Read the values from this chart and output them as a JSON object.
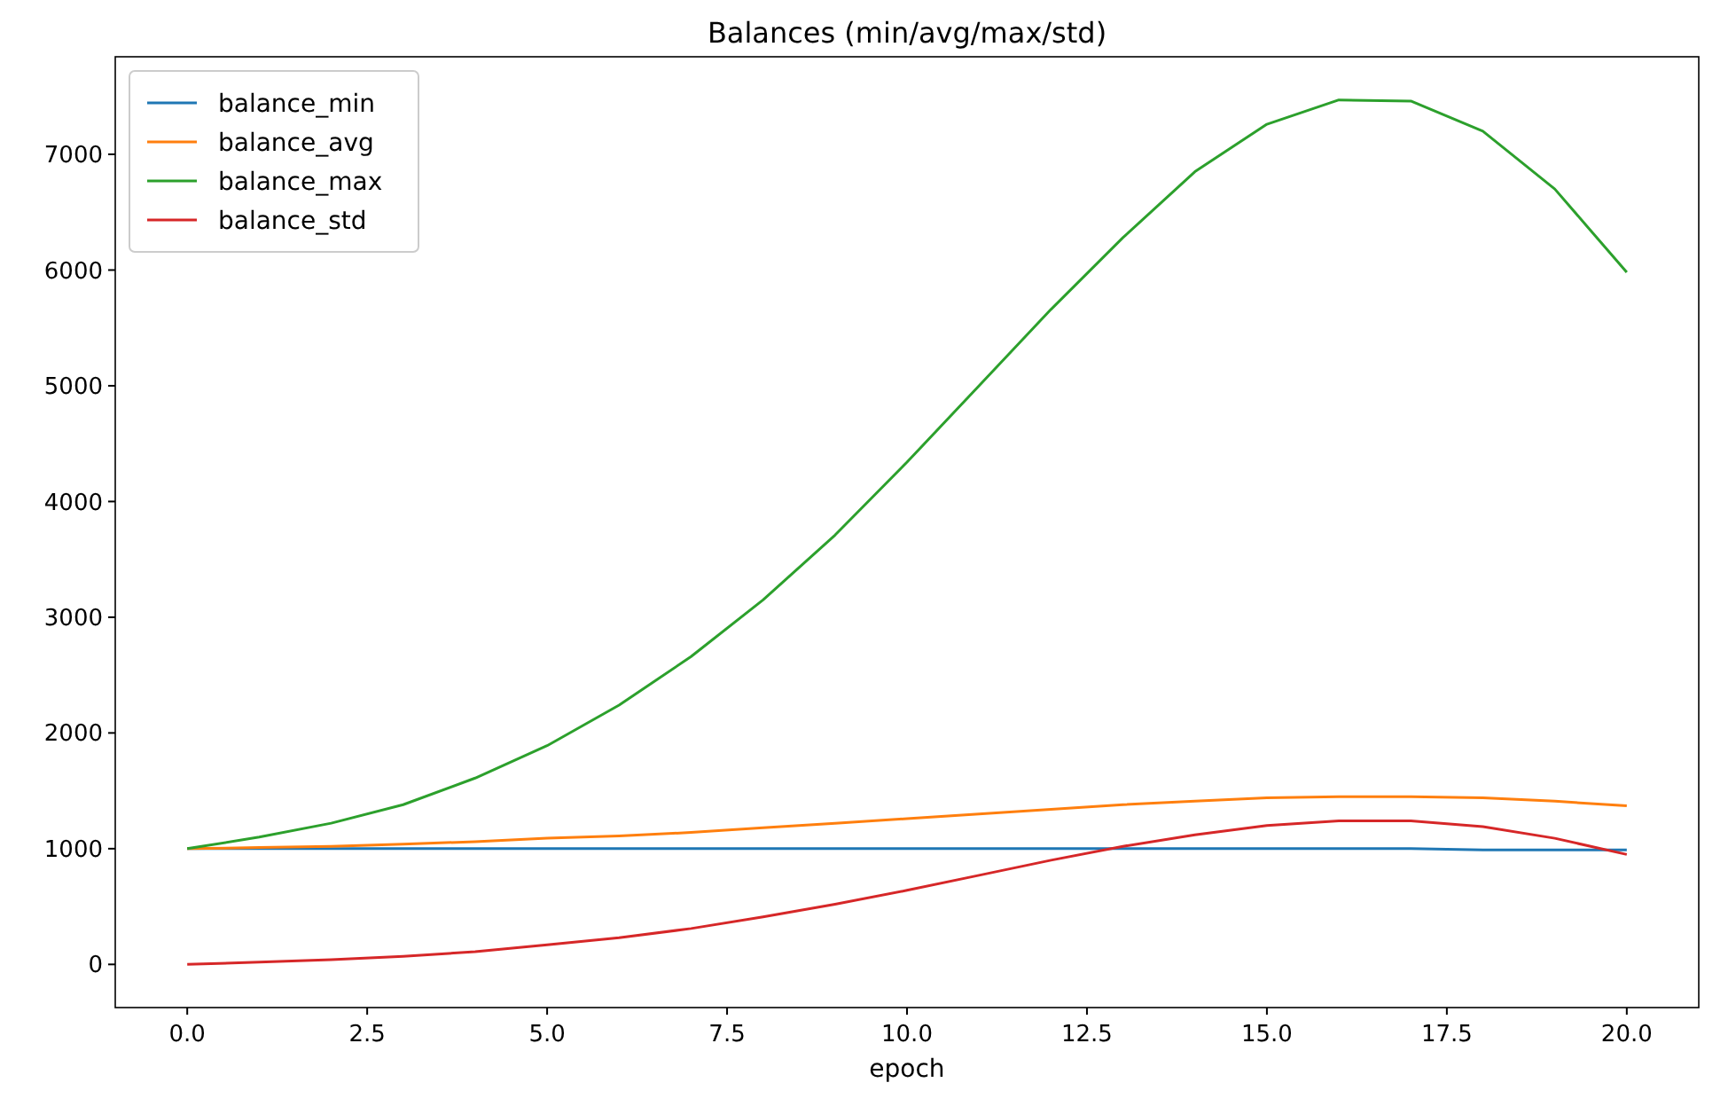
{
  "chart_data": {
    "type": "line",
    "title": "Balances (min/avg/max/std)",
    "xlabel": "epoch",
    "x": [
      0,
      1,
      2,
      3,
      4,
      5,
      6,
      7,
      8,
      9,
      10,
      11,
      12,
      13,
      14,
      15,
      16,
      17,
      18,
      19,
      20
    ],
    "xlim": [
      -1,
      21
    ],
    "xticks": [
      {
        "value": 0,
        "label": "0.0"
      },
      {
        "value": 2.5,
        "label": "2.5"
      },
      {
        "value": 5,
        "label": "5.0"
      },
      {
        "value": 7.5,
        "label": "7.5"
      },
      {
        "value": 10,
        "label": "10.0"
      },
      {
        "value": 12.5,
        "label": "12.5"
      },
      {
        "value": 15,
        "label": "15.0"
      },
      {
        "value": 17.5,
        "label": "17.5"
      },
      {
        "value": 20,
        "label": "20.0"
      }
    ],
    "ylim": [
      -373,
      7843
    ],
    "yticks": [
      0,
      1000,
      2000,
      3000,
      4000,
      5000,
      6000,
      7000
    ],
    "legend": "top left",
    "grid": false,
    "series": [
      {
        "name": "balance_min",
        "color": "#1f77b4",
        "values": [
          1000,
          1000,
          1000,
          1000,
          1000,
          1000,
          1000,
          1000,
          1000,
          1000,
          1000,
          1000,
          1000,
          1000,
          1000,
          1000,
          1000,
          1000,
          990,
          990,
          990
        ]
      },
      {
        "name": "balance_avg",
        "color": "#ff7f0e",
        "values": [
          1000,
          1010,
          1020,
          1040,
          1060,
          1090,
          1110,
          1140,
          1180,
          1220,
          1260,
          1300,
          1340,
          1380,
          1410,
          1440,
          1450,
          1450,
          1440,
          1410,
          1370
        ]
      },
      {
        "name": "balance_max",
        "color": "#2ca02c",
        "values": [
          1000,
          1100,
          1220,
          1380,
          1610,
          1890,
          2240,
          2660,
          3150,
          3710,
          4340,
          5000,
          5660,
          6280,
          6850,
          7260,
          7470,
          7460,
          7200,
          6700,
          5980
        ]
      },
      {
        "name": "balance_std",
        "color": "#d62728",
        "values": [
          0,
          20,
          40,
          70,
          110,
          170,
          230,
          310,
          410,
          520,
          640,
          770,
          900,
          1020,
          1120,
          1200,
          1240,
          1240,
          1190,
          1090,
          950
        ]
      }
    ]
  }
}
